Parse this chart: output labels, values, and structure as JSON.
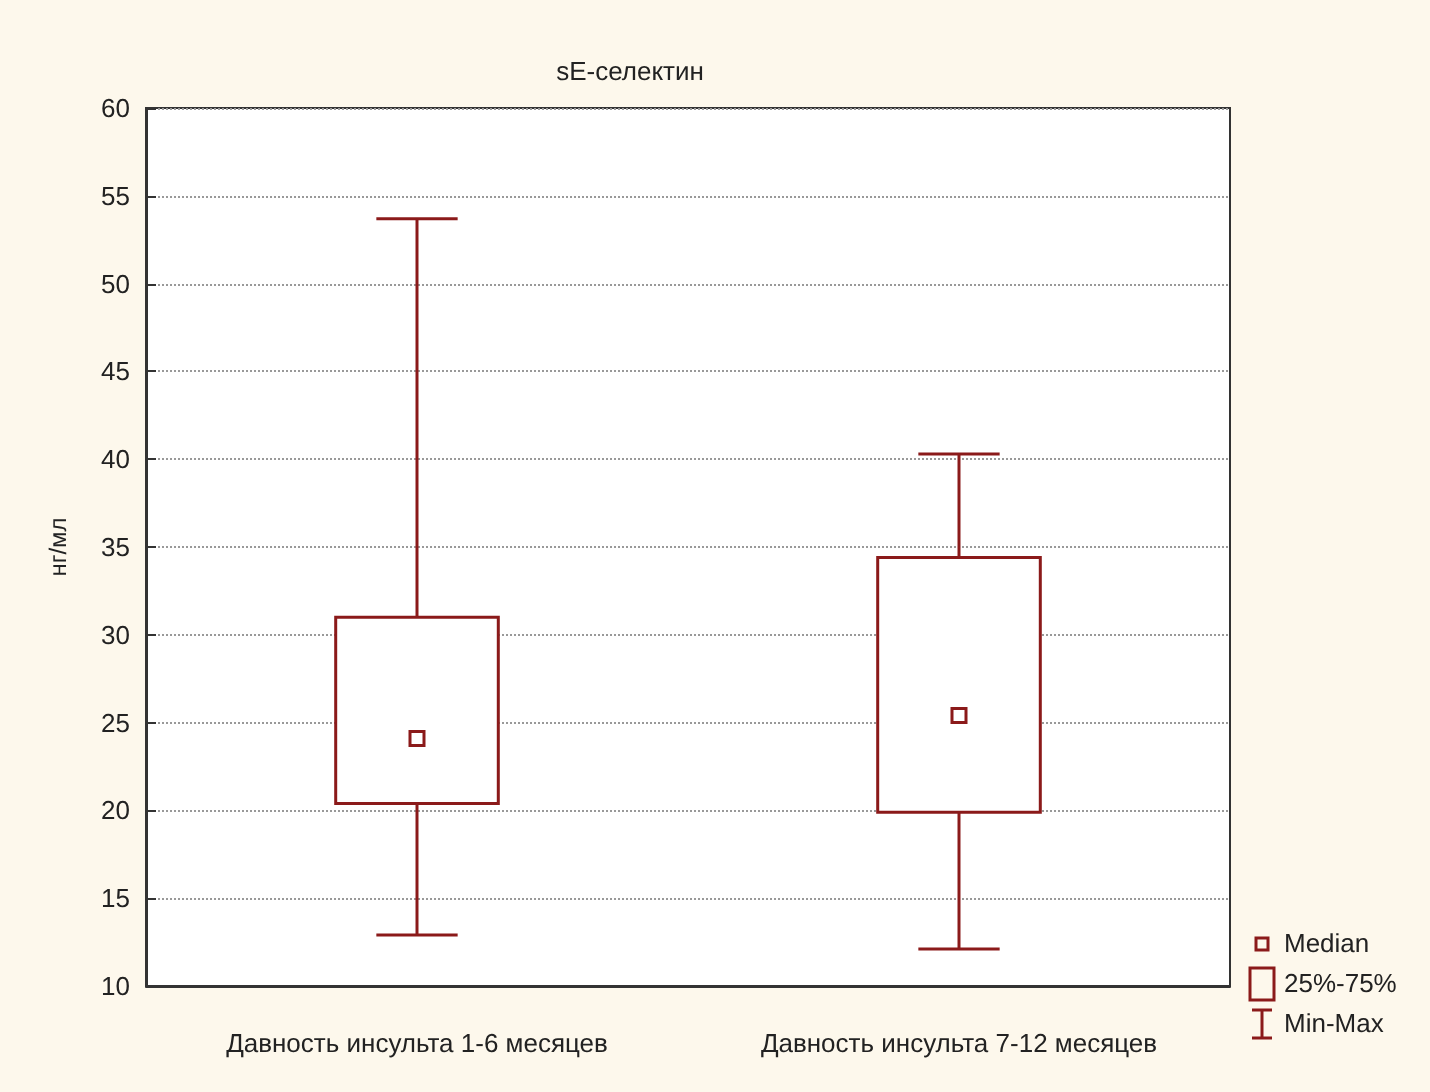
{
  "chart_data": {
    "type": "box",
    "title": "sE-селектин",
    "ylabel": "нг/мл",
    "categories": [
      "Давность инсульта 1-6 месяцев",
      "Давность инсульта 7-12 месяцев"
    ],
    "boxes": [
      {
        "low": 12.9,
        "q1": 20.4,
        "median": 24.1,
        "q3": 31.0,
        "high": 53.7
      },
      {
        "low": 12.1,
        "q1": 19.9,
        "median": 25.4,
        "q3": 34.4,
        "high": 40.3
      }
    ],
    "color": "#8b1a1a",
    "ylim": [
      10,
      60
    ],
    "yticks": [
      10,
      15,
      20,
      25,
      30,
      35,
      40,
      45,
      50,
      55,
      60
    ],
    "grid": "y",
    "annotations": [
      "Median",
      "25%-75%",
      "Min-Max"
    ]
  }
}
